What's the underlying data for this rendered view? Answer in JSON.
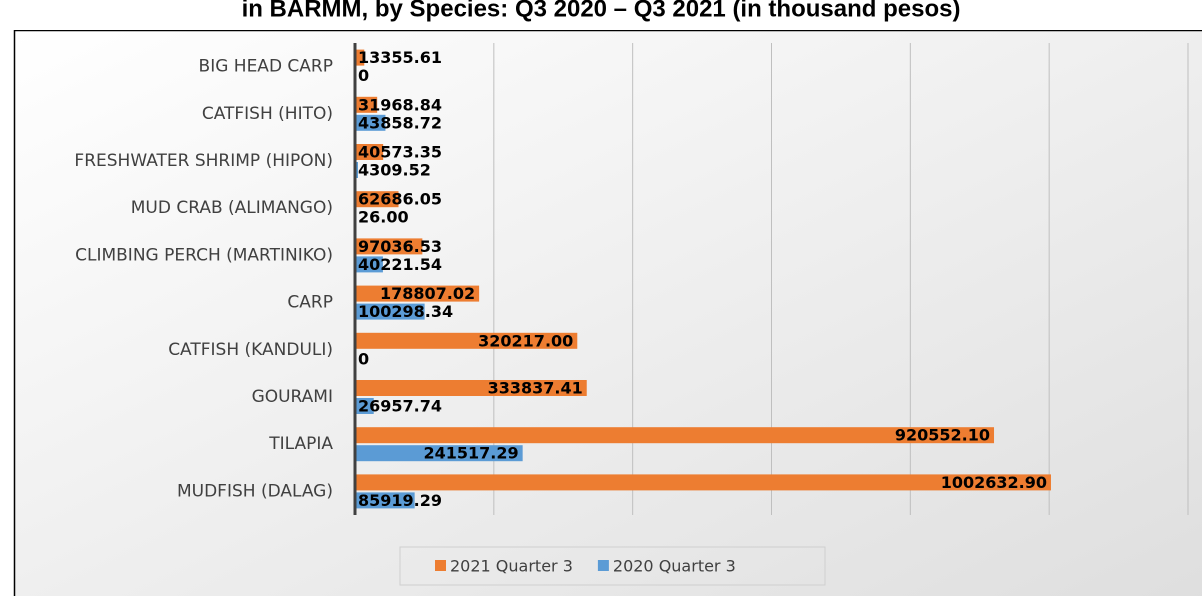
{
  "chart_data": {
    "type": "hbar",
    "title": "in BARMM, by Species: Q3 2020 – Q3 2021 (in thousand pesos)",
    "categories": [
      "BIG HEAD CARP",
      "CATFISH (HITO)",
      "FRESHWATER SHRIMP (HIPON)",
      "MUD CRAB (ALIMANGO)",
      "CLIMBING PERCH (MARTINIKO)",
      "CARP",
      "CATFISH (KANDULI)",
      "GOURAMI",
      "TILAPIA",
      "MUDFISH (DALAG)"
    ],
    "series": [
      {
        "name": "2021 Quarter 3",
        "color": "#ed7d31",
        "values": [
          13355.61,
          31968.84,
          40573.35,
          62686.05,
          97036.53,
          178807.02,
          320217.0,
          333837.41,
          920552.1,
          1002632.9
        ],
        "value_labels": [
          "13355.61",
          "31968.84",
          "40573.35",
          "62686.05",
          "97036.53",
          "178807.02",
          "320217.00",
          "333837.41",
          "920552.10",
          "1002632.90"
        ]
      },
      {
        "name": "2020 Quarter 3",
        "color": "#5b9bd5",
        "values": [
          0,
          43858.72,
          4309.52,
          26.0,
          40221.54,
          100298.34,
          0,
          26957.74,
          241517.29,
          85919.29
        ],
        "value_labels": [
          "0",
          "43858.72",
          "4309.52",
          "26.00",
          "40221.54",
          "100298.34",
          "0",
          "26957.74",
          "241517.29",
          "85919.29"
        ]
      }
    ],
    "xlim": [
      0,
      1200000
    ],
    "xticks": [
      0,
      200000,
      400000,
      600000,
      800000,
      1000000,
      1200000
    ],
    "grid": true,
    "legend": "bottom"
  }
}
